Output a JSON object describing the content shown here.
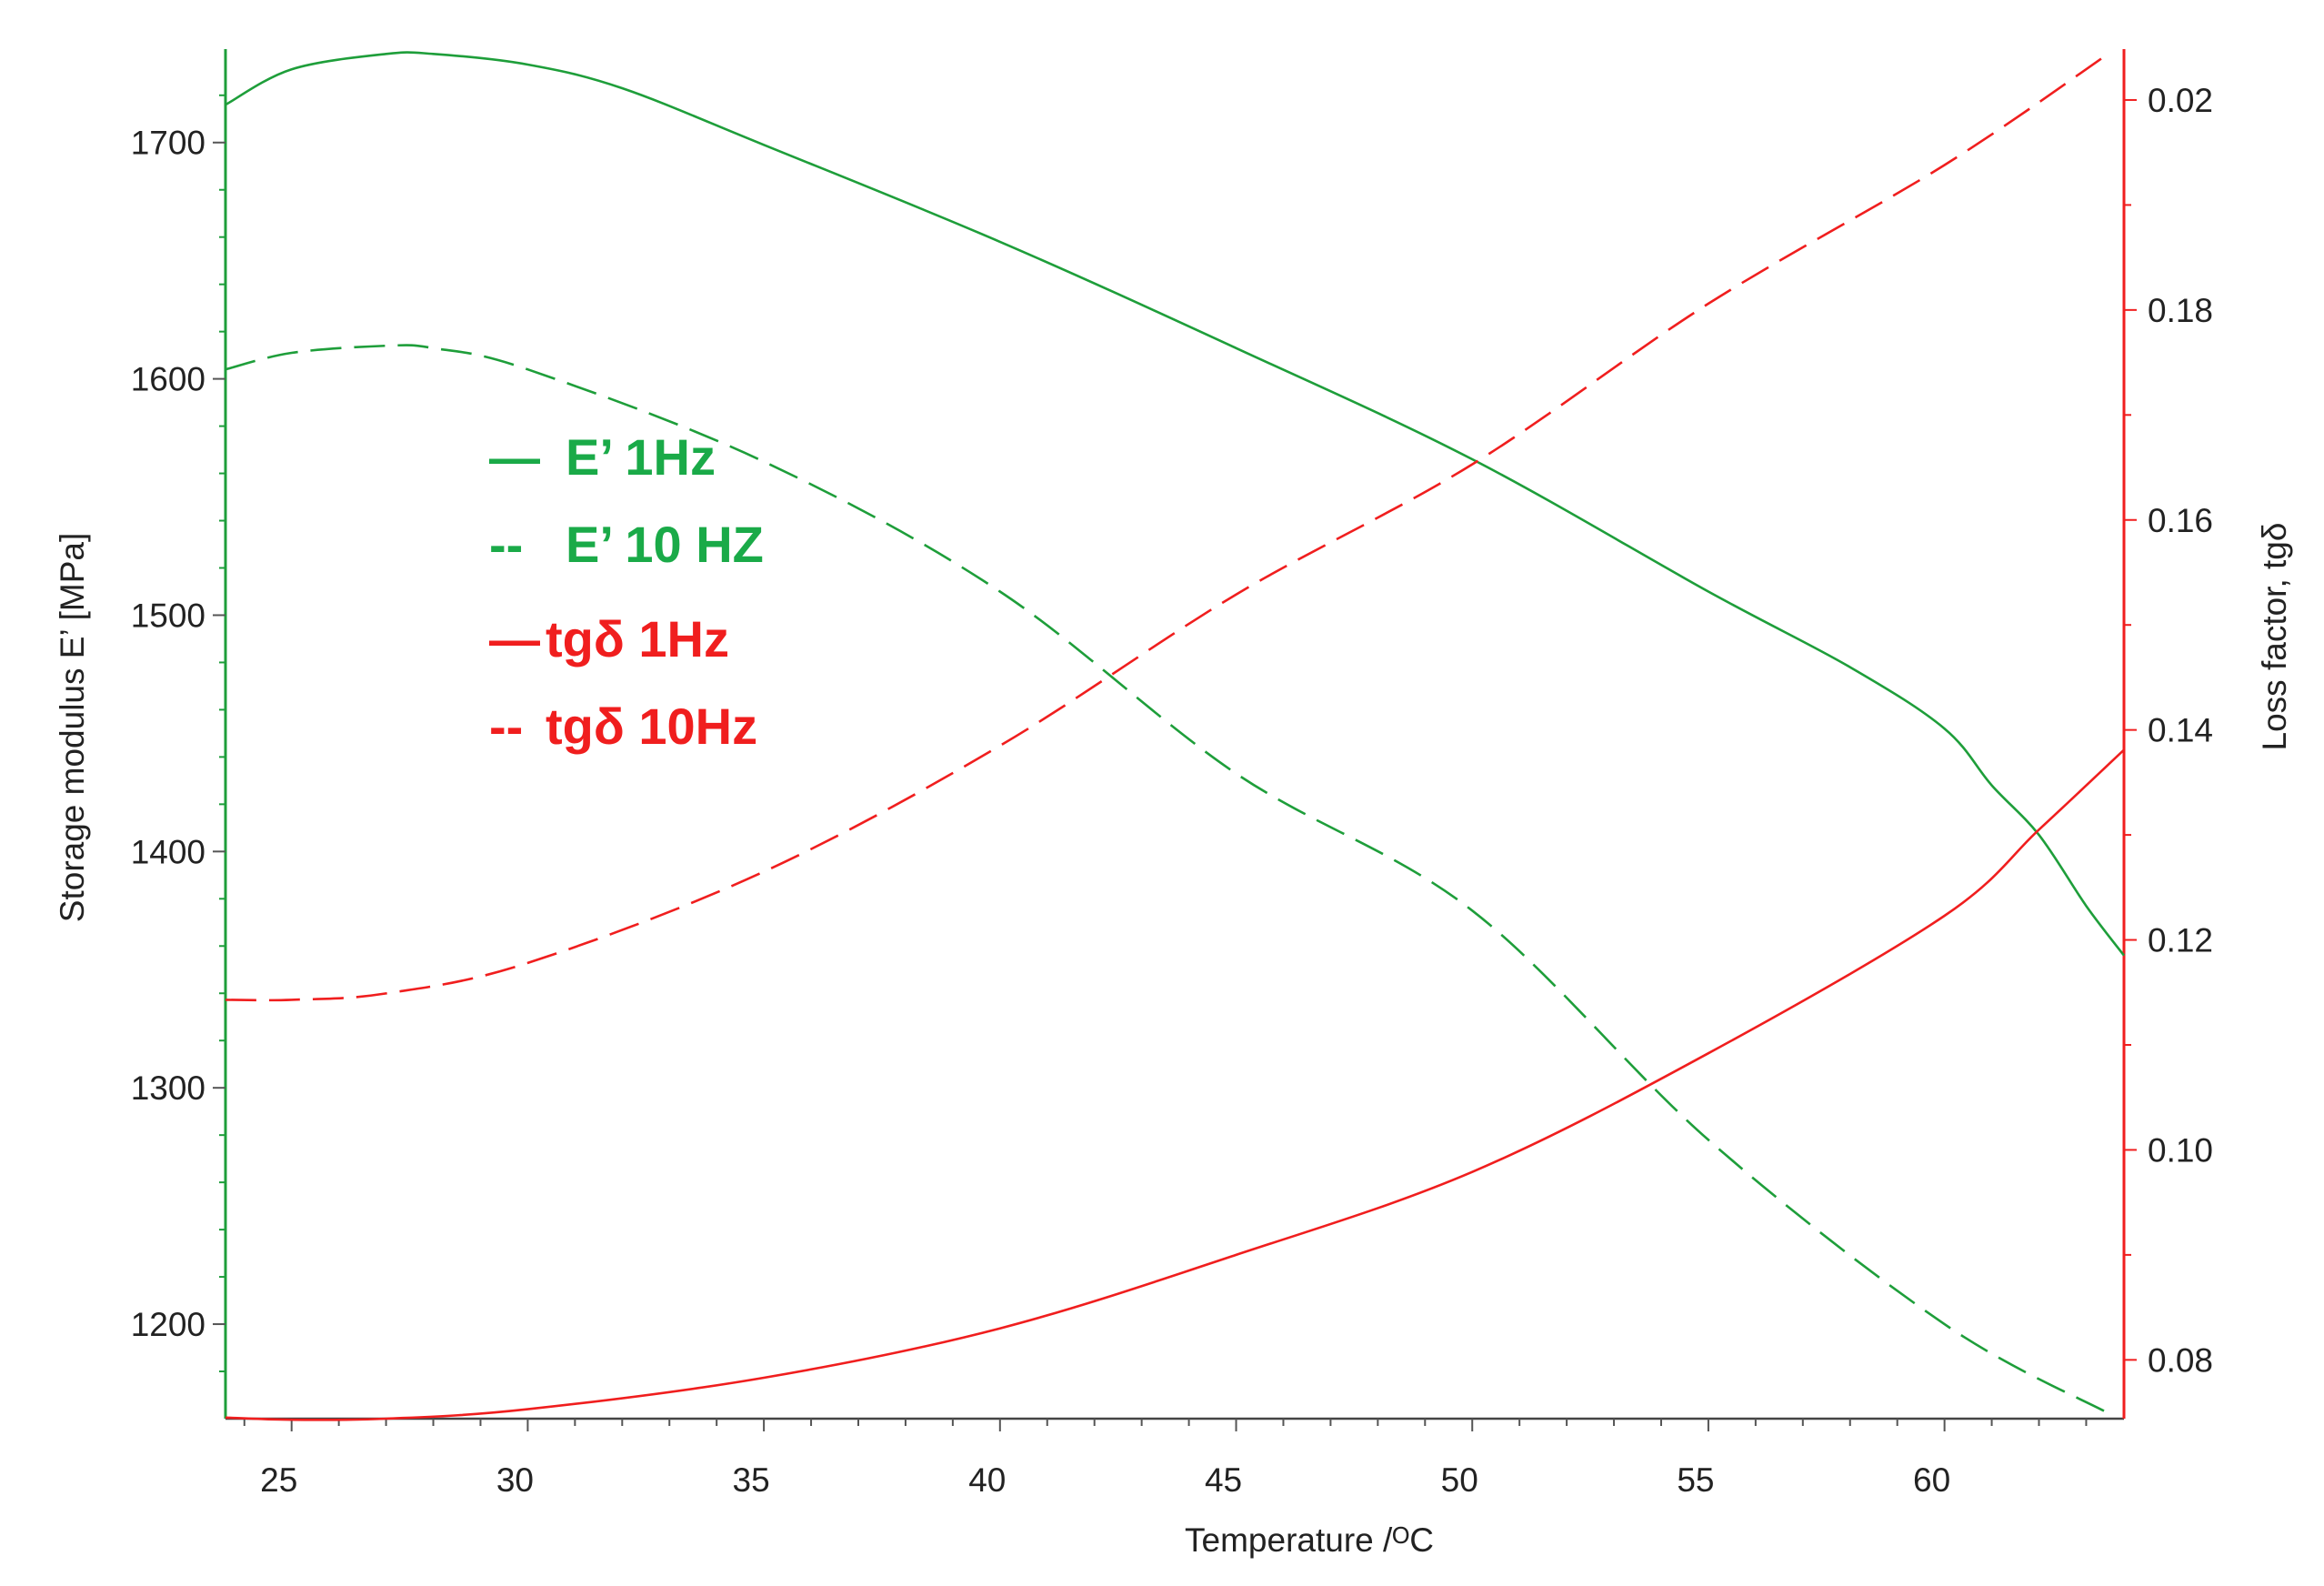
{
  "chart_data": {
    "type": "line",
    "title": "",
    "xlabel": "Temperature /ᴼC",
    "ylabel_left": "Storage modulus E’   [MPa]",
    "ylabel_right": "Loss factor, tgδ",
    "xlim": [
      23.6,
      63.8
    ],
    "ylim_left": [
      1160,
      1738
    ],
    "ylim_right": [
      0.0744,
      0.2045
    ],
    "x_ticks": [
      "25",
      "30",
      "35",
      "40",
      "45",
      "50",
      "55",
      "60"
    ],
    "y_left_ticks": [
      "1200",
      "1300",
      "1400",
      "1500",
      "1600",
      "1700"
    ],
    "y_right_ticks": [
      "0.08",
      "0.10",
      "0.12",
      "0.14",
      "0.16",
      "0.18",
      "0.02"
    ],
    "grid": false,
    "legend_position": "upper-left inside plot",
    "colors": {
      "green": "#1e9e3a",
      "red": "#f01e1e",
      "legend_green": "#1aaa48"
    },
    "legend": [
      {
        "marker": "—",
        "label": "E’ 1Hz",
        "color": "#1aaa48",
        "dashed": false
      },
      {
        "marker": "--",
        "label": "E’ 10 HZ",
        "color": "#1aaa48",
        "dashed": true
      },
      {
        "marker": "—",
        "label": "tgδ 1Hz",
        "color": "#f01e1e",
        "dashed": false
      },
      {
        "marker": "--",
        "label": "tgδ 10Hz",
        "color": "#f01e1e",
        "dashed": true
      }
    ],
    "series": [
      {
        "name": "E’ 1Hz",
        "axis": "left",
        "color": "#1e9e3a",
        "dashed": false,
        "x": [
          23.6,
          25,
          27,
          28,
          30,
          32,
          35,
          40,
          45,
          50,
          55,
          58,
          60,
          61,
          62,
          63,
          63.8
        ],
        "y": [
          1716,
          1731,
          1737.5,
          1737.5,
          1733,
          1723,
          1699,
          1658,
          1613,
          1566,
          1510,
          1478,
          1452,
          1428,
          1407,
          1377,
          1356
        ]
      },
      {
        "name": "E’ 10 HZ",
        "axis": "left",
        "color": "#1e9e3a",
        "dashed": true,
        "x": [
          23.6,
          25,
          27,
          28,
          30,
          35,
          40,
          45,
          50,
          55,
          60,
          63.5
        ],
        "y": [
          1604,
          1611,
          1614,
          1613,
          1604,
          1565,
          1510,
          1433,
          1375,
          1278,
          1200,
          1162
        ]
      },
      {
        "name": "tgδ 1Hz",
        "axis": "right",
        "color": "#f01e1e",
        "dashed": false,
        "x": [
          23.6,
          25,
          27,
          30,
          35,
          40,
          45,
          50,
          55,
          60,
          62,
          63.8
        ],
        "y": [
          0.0745,
          0.0743,
          0.0744,
          0.0753,
          0.0783,
          0.083,
          0.09,
          0.0979,
          0.1092,
          0.1223,
          0.1305,
          0.1381
        ]
      },
      {
        "name": "tgδ 10Hz",
        "axis": "right",
        "color": "#f01e1e",
        "dashed": true,
        "x": [
          23.6,
          25,
          27,
          30,
          35,
          40,
          45,
          50,
          55,
          60,
          63.5
        ],
        "y": [
          0.1143,
          0.1143,
          0.1149,
          0.1178,
          0.1265,
          0.1385,
          0.1529,
          0.1653,
          0.1806,
          0.1938,
          0.2045
        ]
      }
    ]
  }
}
